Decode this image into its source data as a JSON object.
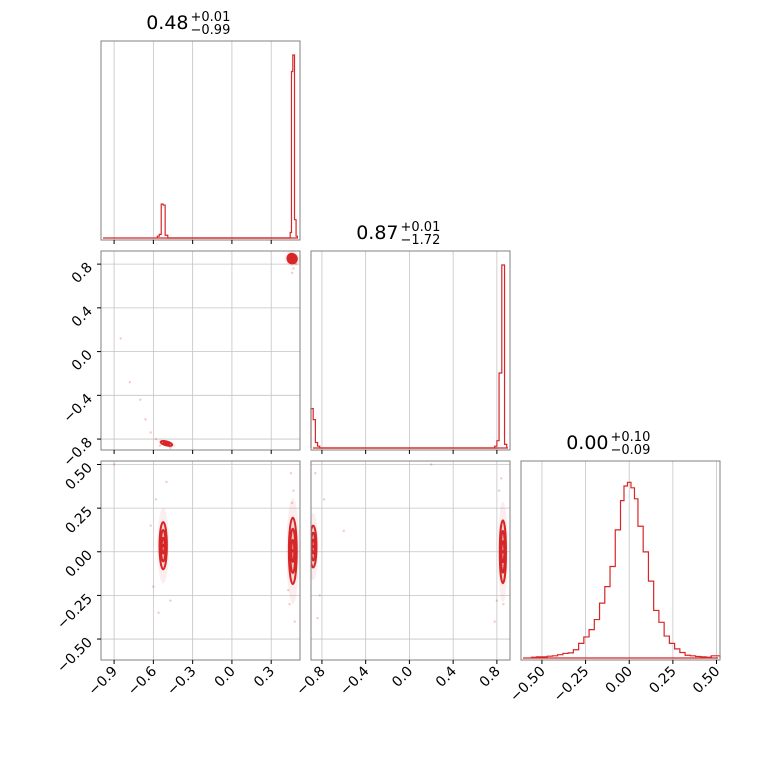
{
  "chart_data": {
    "type": "corner",
    "colors": {
      "series": "#d62728",
      "grid": "#c4c4c4",
      "frame": "#808080"
    },
    "grid": true,
    "parameters": [
      {
        "value": "0.48",
        "plus": "+0.01",
        "minus": "−0.99",
        "range": [
          -1.0,
          0.52
        ],
        "ticks": [
          -0.9,
          -0.6,
          -0.3,
          0.0,
          0.3
        ],
        "tick_labels": [
          "−0.9",
          "−0.6",
          "−0.3",
          "0.0",
          "0.3"
        ]
      },
      {
        "value": "0.87",
        "plus": "+0.01",
        "minus": "−1.72",
        "range": [
          -0.9,
          0.92
        ],
        "ticks": [
          -0.8,
          -0.4,
          0.0,
          0.4,
          0.8
        ],
        "tick_labels": [
          "−0.8",
          "−0.4",
          "0.0",
          "0.4",
          "0.8"
        ]
      },
      {
        "value": "0.00",
        "plus": "+0.10",
        "minus": "−0.09",
        "range": [
          -0.62,
          0.52
        ],
        "ticks": [
          -0.5,
          -0.25,
          0.0,
          0.25,
          0.5
        ],
        "tick_labels": [
          "−0.50",
          "−0.25",
          "0.00",
          "0.25",
          "0.50"
        ]
      }
    ],
    "hist1d": [
      {
        "param": 0,
        "bins": [
          [
            -0.57,
            -0.555,
            0.01
          ],
          [
            -0.555,
            -0.54,
            0.02
          ],
          [
            -0.54,
            -0.525,
            0.185
          ],
          [
            -0.525,
            -0.51,
            0.18
          ],
          [
            -0.51,
            -0.49,
            0.015
          ],
          [
            0.445,
            0.455,
            0.03
          ],
          [
            0.455,
            0.465,
            0.91
          ],
          [
            0.465,
            0.478,
            1.0
          ],
          [
            0.478,
            0.49,
            0.1
          ],
          [
            0.49,
            0.5,
            0.01
          ]
        ]
      },
      {
        "param": 1,
        "bins": [
          [
            -0.9,
            -0.88,
            0.215
          ],
          [
            -0.88,
            -0.86,
            0.155
          ],
          [
            -0.86,
            -0.84,
            0.03
          ],
          [
            -0.84,
            -0.82,
            0.01
          ],
          [
            0.78,
            0.8,
            0.01
          ],
          [
            0.8,
            0.82,
            0.04
          ],
          [
            0.82,
            0.845,
            0.41
          ],
          [
            0.845,
            0.87,
            1.0
          ],
          [
            0.87,
            0.89,
            0.02
          ]
        ]
      },
      {
        "param": 2,
        "bins": [
          [
            -0.56,
            -0.53,
            0.004
          ],
          [
            -0.53,
            -0.5,
            0.006
          ],
          [
            -0.5,
            -0.47,
            0.006
          ],
          [
            -0.47,
            -0.44,
            0.01
          ],
          [
            -0.44,
            -0.41,
            0.012
          ],
          [
            -0.41,
            -0.38,
            0.018
          ],
          [
            -0.38,
            -0.35,
            0.025
          ],
          [
            -0.35,
            -0.32,
            0.028
          ],
          [
            -0.32,
            -0.29,
            0.045
          ],
          [
            -0.29,
            -0.26,
            0.08
          ],
          [
            -0.26,
            -0.23,
            0.115
          ],
          [
            -0.23,
            -0.2,
            0.155
          ],
          [
            -0.2,
            -0.17,
            0.21
          ],
          [
            -0.17,
            -0.14,
            0.3
          ],
          [
            -0.14,
            -0.11,
            0.39
          ],
          [
            -0.11,
            -0.08,
            0.5
          ],
          [
            -0.08,
            -0.05,
            0.7
          ],
          [
            -0.05,
            -0.03,
            0.86
          ],
          [
            -0.03,
            -0.01,
            0.94
          ],
          [
            -0.01,
            0.01,
            0.96
          ],
          [
            0.01,
            0.03,
            0.93
          ],
          [
            0.03,
            0.05,
            0.87
          ],
          [
            0.05,
            0.08,
            0.72
          ],
          [
            0.08,
            0.11,
            0.58
          ],
          [
            0.11,
            0.14,
            0.42
          ],
          [
            0.14,
            0.17,
            0.26
          ],
          [
            0.17,
            0.2,
            0.195
          ],
          [
            0.2,
            0.23,
            0.12
          ],
          [
            0.23,
            0.26,
            0.08
          ],
          [
            0.26,
            0.29,
            0.05
          ],
          [
            0.29,
            0.32,
            0.03
          ],
          [
            0.32,
            0.35,
            0.015
          ],
          [
            0.35,
            0.38,
            0.012
          ],
          [
            0.38,
            0.41,
            0.008
          ],
          [
            0.41,
            0.44,
            0.006
          ],
          [
            0.44,
            0.47,
            0.004
          ],
          [
            0.47,
            0.5,
            0.012
          ],
          [
            0.5,
            0.52,
            0.012
          ]
        ]
      }
    ],
    "contours": [
      {
        "x_param": 0,
        "y_param": 1,
        "blobs": [
          {
            "cx": 0.46,
            "cy": 0.85,
            "rx": 0.035,
            "ry": 0.045,
            "rot": -30,
            "levels": 3
          },
          {
            "cx": -0.5,
            "cy": -0.84,
            "rx": 0.045,
            "ry": 0.018,
            "rot": 15,
            "levels": 2
          }
        ],
        "scatter": [
          [
            -0.85,
            0.12
          ],
          [
            -0.78,
            -0.28
          ],
          [
            -0.7,
            -0.44
          ],
          [
            -0.66,
            -0.62
          ],
          [
            -0.62,
            -0.74
          ],
          [
            -0.58,
            -0.8
          ],
          [
            -0.55,
            -0.86
          ],
          [
            -0.47,
            -0.88
          ],
          [
            0.46,
            0.72
          ],
          [
            0.47,
            0.76
          ],
          [
            0.44,
            0.88
          ],
          [
            0.49,
            0.8
          ]
        ]
      },
      {
        "x_param": 0,
        "y_param": 2,
        "blobs": [
          {
            "cx": -0.525,
            "cy": 0.035,
            "rx": 0.028,
            "ry": 0.135,
            "rot": 0,
            "levels": 3
          },
          {
            "cx": 0.465,
            "cy": 0.005,
            "rx": 0.03,
            "ry": 0.19,
            "rot": 0,
            "levels": 3
          }
        ],
        "scatter": [
          [
            -0.9,
            0.5
          ],
          [
            -0.6,
            -0.2
          ],
          [
            -0.58,
            0.3
          ],
          [
            -0.56,
            -0.35
          ],
          [
            -0.5,
            0.4
          ],
          [
            -0.47,
            -0.28
          ],
          [
            -0.62,
            0.15
          ],
          [
            0.44,
            -0.3
          ],
          [
            0.47,
            0.35
          ],
          [
            0.45,
            0.45
          ],
          [
            0.48,
            -0.4
          ],
          [
            0.46,
            0.28
          ],
          [
            0.43,
            -0.22
          ]
        ]
      },
      {
        "x_param": 1,
        "y_param": 2,
        "blobs": [
          {
            "cx": -0.88,
            "cy": 0.03,
            "rx": 0.03,
            "ry": 0.12,
            "rot": 0,
            "levels": 3
          },
          {
            "cx": 0.855,
            "cy": 0.0,
            "rx": 0.028,
            "ry": 0.18,
            "rot": 0,
            "levels": 3
          }
        ],
        "scatter": [
          [
            -0.86,
            0.45
          ],
          [
            -0.82,
            -0.25
          ],
          [
            -0.84,
            -0.38
          ],
          [
            -0.78,
            0.3
          ],
          [
            -0.6,
            0.12
          ],
          [
            0.2,
            0.5
          ],
          [
            0.82,
            0.35
          ],
          [
            0.8,
            -0.28
          ],
          [
            0.84,
            0.42
          ],
          [
            0.78,
            -0.4
          ],
          [
            0.86,
            -0.3
          ]
        ]
      }
    ]
  }
}
